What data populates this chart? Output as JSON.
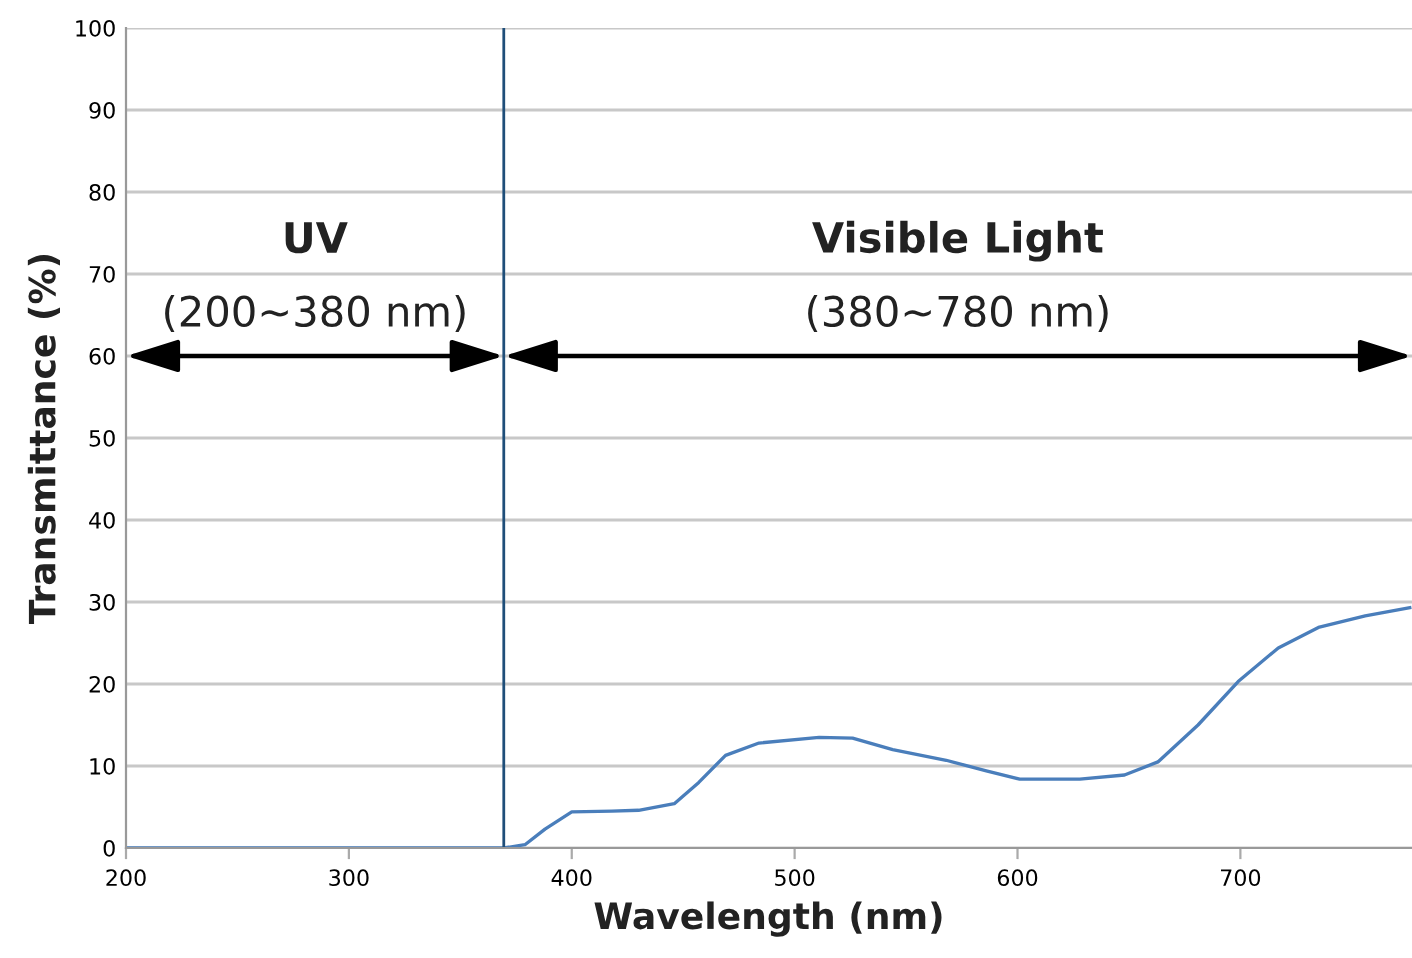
{
  "chart_data": {
    "type": "line",
    "xlabel": "Wavelength (nm)",
    "ylabel": "Transmittance (%)",
    "x": [
      200,
      369.5,
      379,
      388,
      400,
      418,
      430,
      446,
      457,
      469,
      484,
      511,
      526,
      544,
      568,
      586,
      601,
      628,
      648,
      663,
      681,
      699,
      717,
      735,
      756,
      776
    ],
    "series": [
      {
        "color": "#4a7ebb",
        "values": [
          0,
          0,
          0.4,
          2.3,
          4.4,
          4.5,
          4.6,
          5.4,
          8.0,
          11.3,
          12.8,
          13.5,
          13.4,
          12.0,
          10.7,
          9.4,
          8.4,
          8.4,
          8.9,
          10.5,
          15.0,
          20.3,
          24.4,
          26.9,
          28.3,
          29.3
        ]
      }
    ],
    "xlim": [
      200,
      777
    ],
    "ylim": [
      0,
      100
    ],
    "xticks": [
      200,
      300,
      400,
      500,
      600,
      700
    ],
    "yticks": [
      0,
      10,
      20,
      30,
      40,
      50,
      60,
      70,
      80,
      90,
      100
    ],
    "grid": "y",
    "legend": false,
    "marker": "none",
    "line_style": "solid",
    "ref_lines": [
      {
        "axis": "x",
        "value": 369.5,
        "color": "#1f4e79"
      }
    ],
    "annotations": [
      "UV",
      "(200~380 nm)",
      "Visible Light",
      "(380~780 nm)"
    ]
  }
}
